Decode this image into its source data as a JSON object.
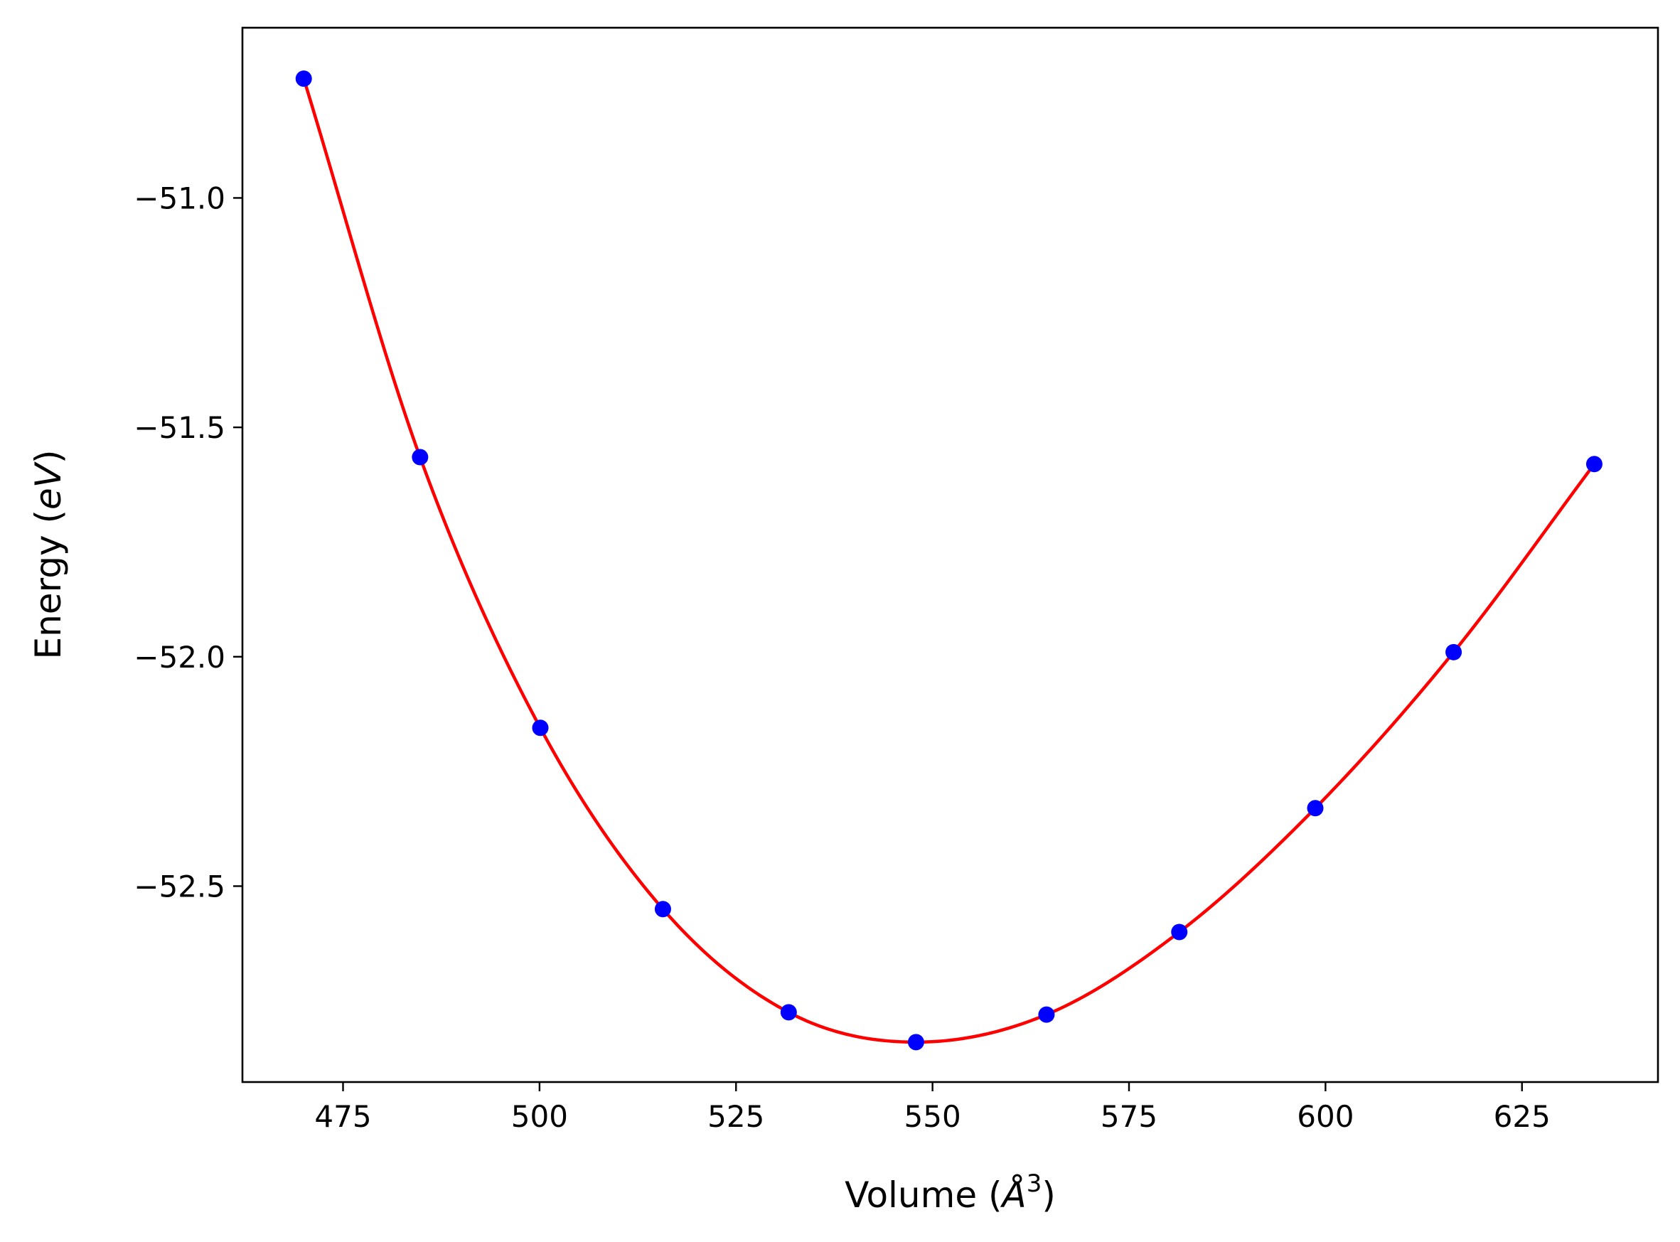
{
  "chart_data": {
    "type": "line",
    "xlabel": {
      "prefix": "Volume (",
      "unit_base": "Å",
      "unit_exp": "3",
      "suffix": ")"
    },
    "ylabel": {
      "prefix": "Energy (",
      "unit": "eV",
      "suffix": ")"
    },
    "xlim": [
      462.2,
      642.3
    ],
    "ylim": [
      -52.927,
      -50.629
    ],
    "x_ticks": [
      475,
      500,
      525,
      550,
      575,
      600,
      625
    ],
    "x_tick_labels": [
      "475",
      "500",
      "525",
      "550",
      "575",
      "600",
      "625"
    ],
    "y_ticks": [
      -51.0,
      -51.5,
      -52.0,
      -52.5
    ],
    "y_tick_labels": [
      "−51.0",
      "−51.5",
      "−52.0",
      "−52.5"
    ],
    "grid": false,
    "series": [
      {
        "kind": "fit-curve",
        "color": "#ff0000",
        "x": [
          470.0,
          484.8,
          500.1,
          515.7,
          531.7,
          547.9,
          564.5,
          581.4,
          598.7,
          616.3,
          634.2
        ],
        "y": [
          -50.74,
          -51.565,
          -52.155,
          -52.55,
          -52.775,
          -52.84,
          -52.78,
          -52.6,
          -52.33,
          -51.99,
          -51.58
        ]
      },
      {
        "kind": "data-points",
        "color": "#0000ff",
        "x": [
          470.0,
          484.8,
          500.1,
          515.7,
          531.7,
          547.9,
          564.5,
          581.4,
          598.7,
          616.3,
          634.2
        ],
        "y": [
          -50.74,
          -51.565,
          -52.155,
          -52.55,
          -52.775,
          -52.84,
          -52.78,
          -52.6,
          -52.33,
          -51.99,
          -51.58
        ]
      }
    ]
  }
}
